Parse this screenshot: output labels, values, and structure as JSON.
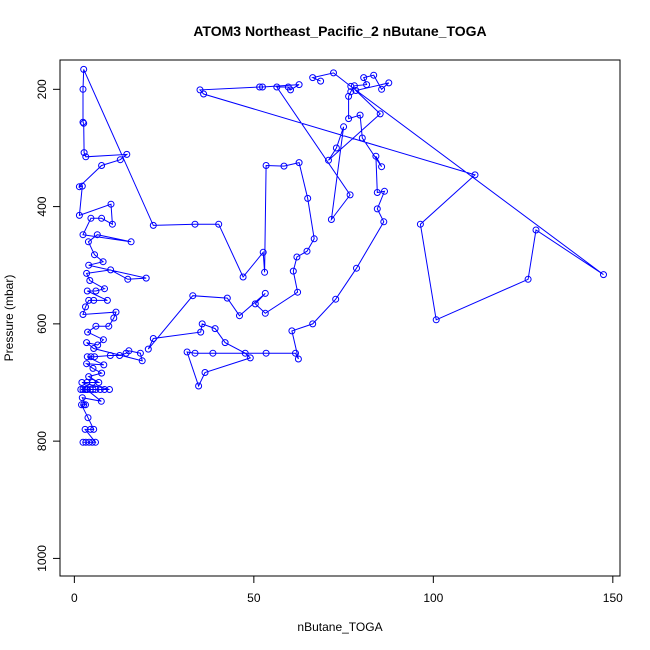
{
  "chart_data": {
    "type": "scatter",
    "title": "ATOM3 Northeast_Pacific_2 nButane_TOGA",
    "xlabel": "nButane_TOGA",
    "ylabel": "Pressure (mbar)",
    "xlim": [
      -4,
      152
    ],
    "ylim": [
      1030,
      150
    ],
    "y_reversed": true,
    "x_ticks": [
      0,
      50,
      100,
      150
    ],
    "y_ticks": [
      200,
      400,
      600,
      800,
      1000
    ],
    "grid": false,
    "legend": "none",
    "colors": {
      "series": "#0000ff",
      "axes": "#000000"
    },
    "series": [
      {
        "style": "lines+open-circles",
        "points": [
          [
            2.4,
            802
          ],
          [
            3.2,
            802
          ],
          [
            4.1,
            802
          ],
          [
            5.0,
            802
          ],
          [
            5.9,
            802
          ],
          [
            3.0,
            780
          ],
          [
            4.5,
            780
          ],
          [
            5.4,
            780
          ],
          [
            3.8,
            760
          ],
          [
            2.0,
            738
          ],
          [
            2.6,
            738
          ],
          [
            3.1,
            738
          ],
          [
            2.2,
            726
          ],
          [
            7.5,
            732
          ],
          [
            3.4,
            712
          ],
          [
            1.8,
            712
          ],
          [
            2.4,
            712
          ],
          [
            3.0,
            712
          ],
          [
            3.6,
            712
          ],
          [
            4.4,
            712
          ],
          [
            5.2,
            712
          ],
          [
            6.0,
            712
          ],
          [
            7.2,
            712
          ],
          [
            8.4,
            712
          ],
          [
            9.8,
            712
          ],
          [
            2.1,
            700
          ],
          [
            3.5,
            700
          ],
          [
            5.0,
            700
          ],
          [
            6.8,
            700
          ],
          [
            4.0,
            690
          ],
          [
            7.6,
            684
          ],
          [
            5.2,
            676
          ],
          [
            3.4,
            668
          ],
          [
            8.2,
            670
          ],
          [
            3.6,
            656
          ],
          [
            4.6,
            656
          ],
          [
            5.6,
            656
          ],
          [
            10.0,
            654
          ],
          [
            12.6,
            654
          ],
          [
            14.4,
            650
          ],
          [
            15.2,
            646
          ],
          [
            18.4,
            650
          ],
          [
            18.9,
            663
          ],
          [
            5.4,
            642
          ],
          [
            3.4,
            632
          ],
          [
            6.5,
            636
          ],
          [
            8.1,
            627
          ],
          [
            3.7,
            614
          ],
          [
            6.0,
            604
          ],
          [
            9.6,
            604
          ],
          [
            11.0,
            590
          ],
          [
            11.6,
            580
          ],
          [
            2.4,
            584
          ],
          [
            3.1,
            571
          ],
          [
            4.0,
            560
          ],
          [
            5.4,
            560
          ],
          [
            9.2,
            560
          ],
          [
            3.6,
            544
          ],
          [
            6.0,
            544
          ],
          [
            8.4,
            540
          ],
          [
            4.3,
            526
          ],
          [
            3.4,
            514
          ],
          [
            10.1,
            508
          ],
          [
            14.9,
            524
          ],
          [
            20.0,
            522
          ],
          [
            4.0,
            500
          ],
          [
            8.0,
            494
          ],
          [
            5.6,
            482
          ],
          [
            3.9,
            460
          ],
          [
            6.4,
            448
          ],
          [
            15.8,
            460
          ],
          [
            2.4,
            448
          ],
          [
            4.6,
            420
          ],
          [
            7.6,
            420
          ],
          [
            10.6,
            430
          ],
          [
            10.2,
            396
          ],
          [
            1.4,
            415
          ],
          [
            2.2,
            365
          ],
          [
            1.4,
            366
          ],
          [
            7.6,
            330
          ],
          [
            12.8,
            320
          ],
          [
            14.6,
            311
          ],
          [
            3.2,
            315
          ],
          [
            2.7,
            308
          ],
          [
            2.6,
            258
          ],
          [
            2.4,
            256
          ],
          [
            2.4,
            200
          ],
          [
            2.6,
            166
          ],
          [
            22.0,
            432
          ],
          [
            33.6,
            430
          ],
          [
            40.2,
            430
          ],
          [
            47.0,
            520
          ],
          [
            52.6,
            478
          ],
          [
            53.0,
            512
          ],
          [
            53.4,
            330
          ],
          [
            58.4,
            331
          ],
          [
            62.6,
            325
          ],
          [
            65.0,
            386
          ],
          [
            66.8,
            455
          ],
          [
            64.8,
            476
          ],
          [
            62.0,
            486
          ],
          [
            61.0,
            510
          ],
          [
            62.2,
            546
          ],
          [
            53.2,
            582
          ],
          [
            50.4,
            566
          ],
          [
            53.2,
            548
          ],
          [
            46.0,
            586
          ],
          [
            42.6,
            556
          ],
          [
            33.0,
            552
          ],
          [
            20.6,
            643
          ],
          [
            22.0,
            625
          ],
          [
            35.2,
            614
          ],
          [
            35.6,
            600
          ],
          [
            39.2,
            608
          ],
          [
            42.0,
            632
          ],
          [
            47.6,
            650
          ],
          [
            49.0,
            658
          ],
          [
            36.4,
            683
          ],
          [
            34.6,
            706
          ],
          [
            31.4,
            648
          ],
          [
            33.6,
            650
          ],
          [
            38.6,
            650
          ],
          [
            53.4,
            650
          ],
          [
            61.6,
            650
          ],
          [
            62.4,
            660
          ],
          [
            60.6,
            612
          ],
          [
            66.4,
            600
          ],
          [
            72.8,
            558
          ],
          [
            78.6,
            505
          ],
          [
            86.2,
            426
          ],
          [
            84.4,
            404
          ],
          [
            86.4,
            374
          ],
          [
            84.4,
            376
          ],
          [
            84.0,
            314
          ],
          [
            85.6,
            332
          ],
          [
            80.2,
            283
          ],
          [
            79.6,
            244
          ],
          [
            76.4,
            250
          ],
          [
            76.4,
            212
          ],
          [
            77.0,
            204
          ],
          [
            78.0,
            194
          ],
          [
            81.4,
            192
          ],
          [
            80.6,
            180
          ],
          [
            83.4,
            176
          ],
          [
            85.6,
            200
          ],
          [
            87.6,
            189
          ],
          [
            78.4,
            202
          ],
          [
            85.2,
            242
          ],
          [
            70.8,
            321
          ],
          [
            73.0,
            300
          ],
          [
            75.0,
            264
          ],
          [
            71.6,
            422
          ],
          [
            76.8,
            380
          ],
          [
            56.4,
            196
          ],
          [
            59.6,
            196
          ],
          [
            60.2,
            201
          ],
          [
            62.6,
            192
          ],
          [
            52.4,
            196
          ],
          [
            51.6,
            196
          ],
          [
            35.0,
            201
          ],
          [
            36.0,
            208
          ],
          [
            111.6,
            346
          ],
          [
            96.4,
            430
          ],
          [
            100.8,
            593
          ],
          [
            126.4,
            524
          ],
          [
            128.6,
            440
          ],
          [
            147.4,
            516
          ],
          [
            77.0,
            195
          ],
          [
            72.2,
            172
          ],
          [
            66.4,
            180
          ],
          [
            68.6,
            186
          ]
        ]
      }
    ]
  }
}
